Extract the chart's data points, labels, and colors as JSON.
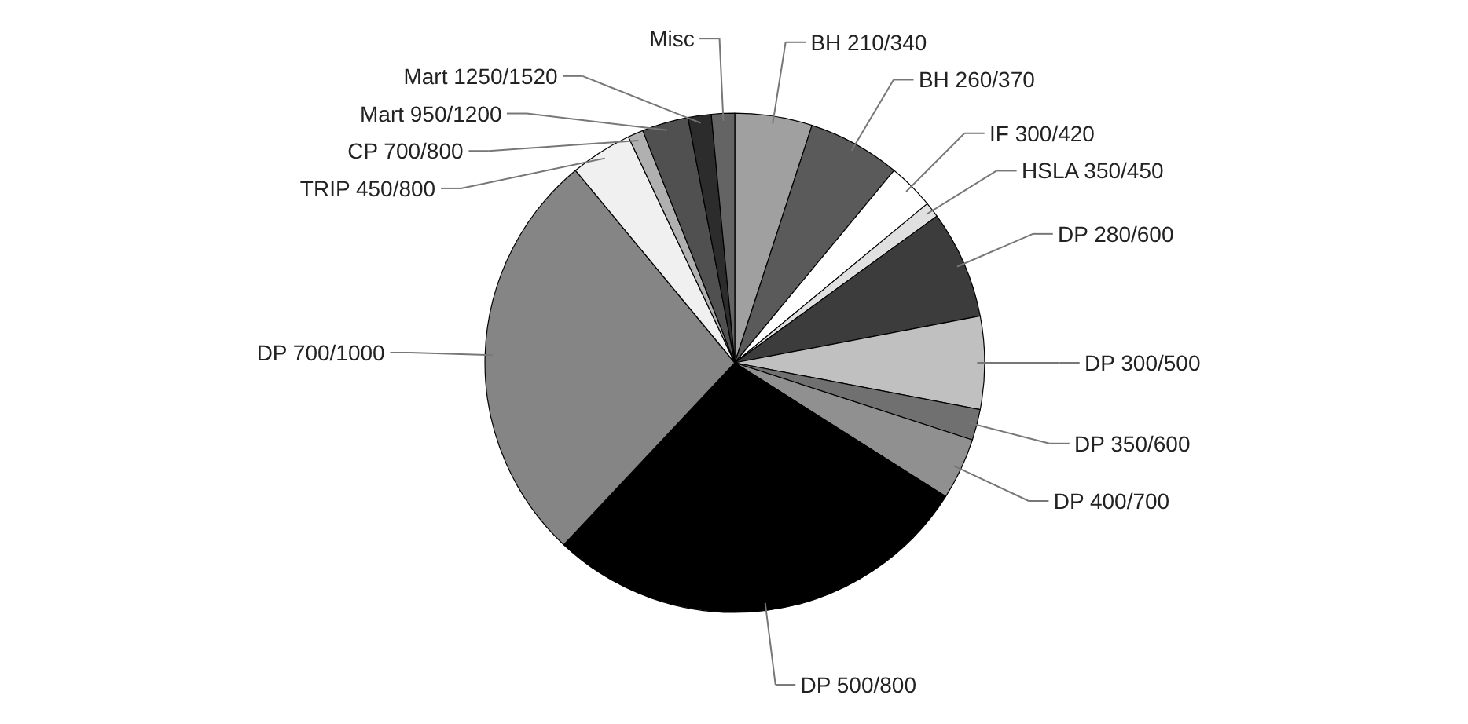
{
  "chart_data": {
    "type": "pie",
    "categories": [
      "BH 210/340",
      "BH 260/370",
      "IF 300/420",
      "HSLA 350/450",
      "DP 280/600",
      "DP 300/500",
      "DP 350/600",
      "DP 400/700",
      "DP 500/800",
      "DP 700/1000",
      "TRIP 450/800",
      "CP 700/800",
      "Mart 950/1200",
      "Mart 1250/1520",
      "Misc"
    ],
    "values": [
      5,
      6,
      3,
      1,
      7,
      6,
      2,
      4,
      28,
      27,
      4,
      1,
      3,
      1.5,
      1.5
    ],
    "colors": [
      "#a0a0a0",
      "#5a5a5a",
      "#ffffff",
      "#e0e0e0",
      "#3c3c3c",
      "#c0c0c0",
      "#707070",
      "#909090",
      "#000000",
      "#858585",
      "#f0f0f0",
      "#b0b0b0",
      "#505050",
      "#2c2c2c",
      "#646464"
    ]
  }
}
